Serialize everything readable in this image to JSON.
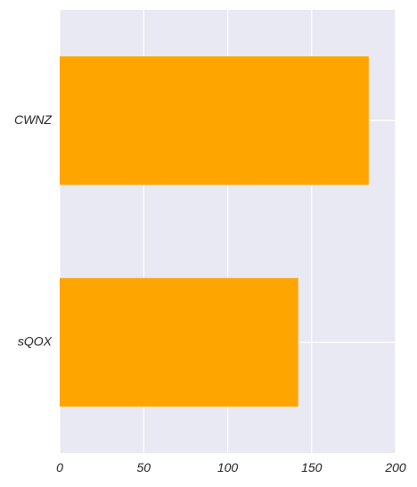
{
  "chart_data": {
    "type": "bar",
    "orientation": "horizontal",
    "categories": [
      "CWNZ",
      "sQOX"
    ],
    "values": [
      184,
      142
    ],
    "title": "",
    "xlabel": "",
    "ylabel": "",
    "xlim": [
      0,
      200
    ],
    "xticks": [
      0,
      50,
      100,
      150,
      200
    ],
    "grid": true,
    "legend": "none",
    "colors": {
      "bar": "#FFA500",
      "plot_background": "#E8E9F2",
      "grid": "#FFFFFF",
      "text": "#222222"
    }
  }
}
